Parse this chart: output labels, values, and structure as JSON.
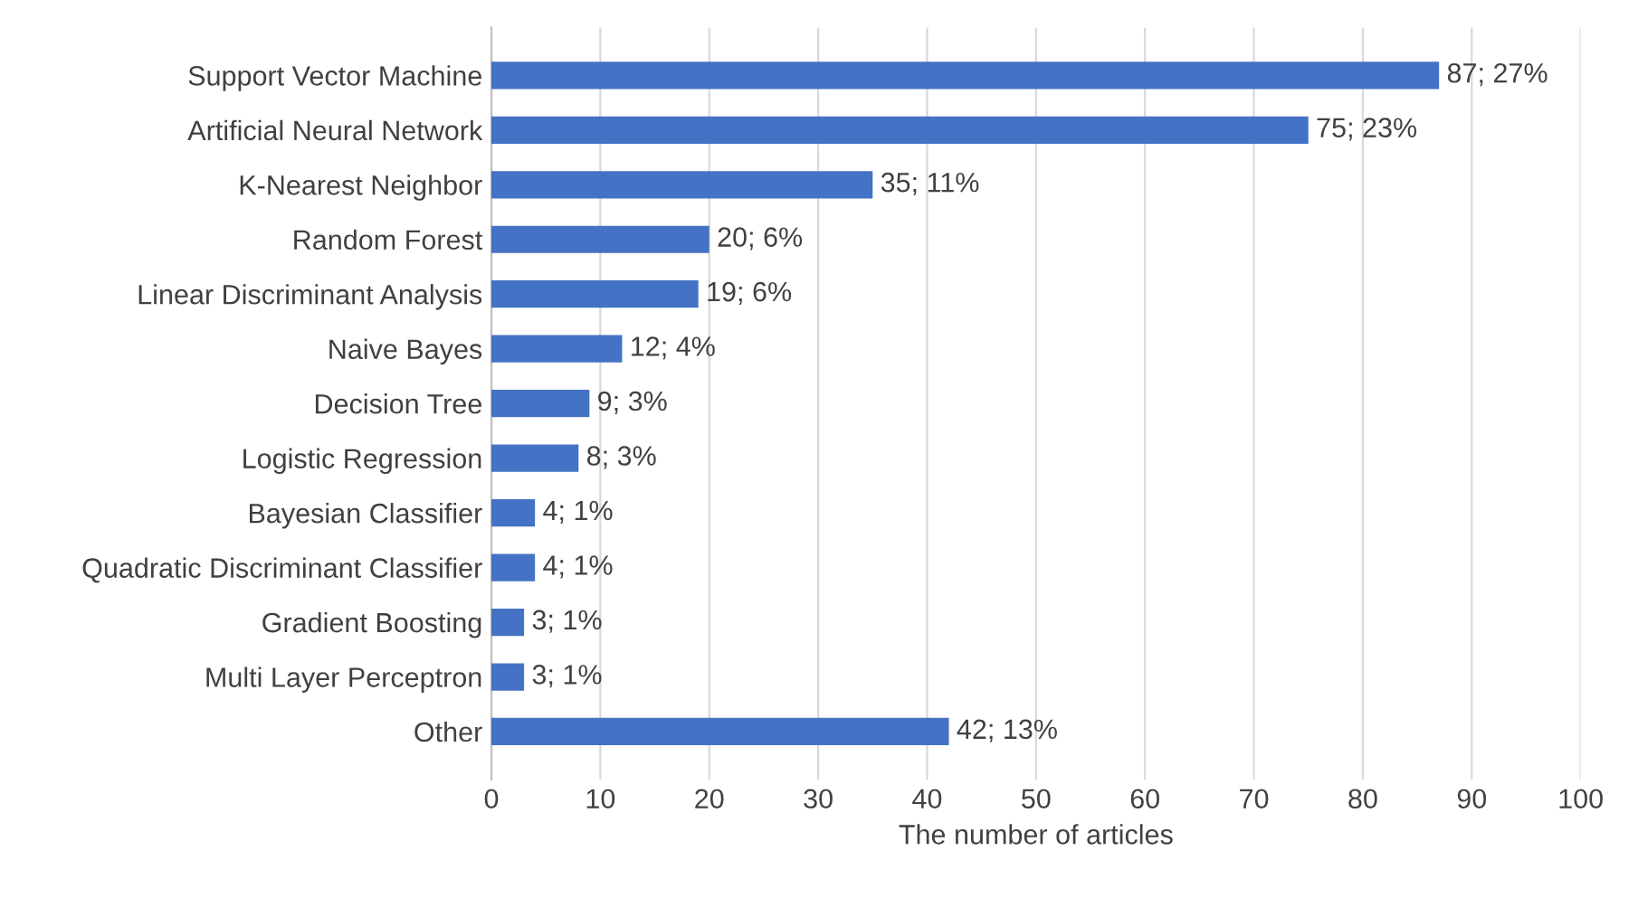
{
  "chart_data": {
    "type": "bar",
    "orientation": "horizontal",
    "xlabel": "The number of articles",
    "categories": [
      "Support Vector Machine",
      "Artificial Neural Network",
      "K-Nearest Neighbor",
      "Random Forest",
      "Linear Discriminant Analysis",
      "Naive Bayes",
      "Decision Tree",
      "Logistic Regression",
      "Bayesian Classifier",
      "Quadratic Discriminant Classifier",
      "Gradient Boosting",
      "Multi Layer Perceptron",
      "Other"
    ],
    "values": [
      87,
      75,
      35,
      20,
      19,
      12,
      9,
      8,
      4,
      4,
      3,
      3,
      42
    ],
    "value_labels": [
      "87; 27%",
      "75; 23%",
      "35; 11%",
      "20; 6%",
      "19; 6%",
      "12; 4%",
      "9; 3%",
      "8; 3%",
      "4; 1%",
      "4; 1%",
      "3; 1%",
      "3; 1%",
      "42; 13%"
    ],
    "color": "#4472c4",
    "xlim": [
      0,
      100
    ],
    "xticks": [
      0,
      10,
      20,
      30,
      40,
      50,
      60,
      70,
      80,
      90,
      100
    ],
    "grid": "x"
  }
}
